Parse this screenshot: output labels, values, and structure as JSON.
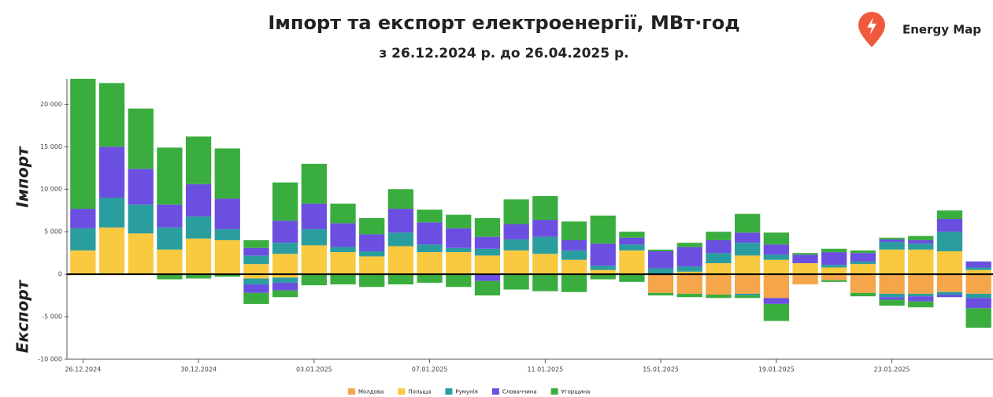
{
  "chart_data": {
    "type": "bar",
    "title": "Імпорт та експорт електроенергії, МВт·год",
    "subtitle": "з 26.12.2024 р. до 26.04.2025 р.",
    "brand": "Energy Map",
    "y_label_positive": "Імпорт",
    "y_label_negative": "Експорт",
    "categories": [
      "26.12.2024",
      null,
      null,
      null,
      "30.12.2024",
      null,
      null,
      null,
      "03.01.2025",
      null,
      null,
      null,
      "07.01.2025",
      null,
      null,
      null,
      "11.01.2025",
      null,
      null,
      null,
      "15.01.2025",
      null,
      null,
      null,
      "19.01.2025",
      null,
      null,
      null,
      "23.01.2025",
      null,
      null,
      null
    ],
    "ylim": [
      -10000,
      23000
    ],
    "yticks": [
      {
        "value": -10000,
        "label": "-10 000"
      },
      {
        "value": -5000,
        "label": "-5 000"
      },
      0,
      {
        "value": 5000,
        "label": "5 000"
      },
      {
        "value": 10000,
        "label": "10 000"
      },
      {
        "value": 15000,
        "label": "15 000"
      },
      {
        "value": 20000,
        "label": "20 000"
      }
    ],
    "series": [
      {
        "name": "Молдова",
        "color": "#f5a54a",
        "values": [
          0,
          0,
          0,
          0,
          0,
          0,
          0,
          0,
          0,
          0,
          0,
          0,
          0,
          0,
          0,
          0,
          0,
          0,
          0,
          0,
          0,
          0,
          0,
          0,
          0,
          0,
          0,
          0,
          0,
          0,
          0,
          0
        ],
        "export": [
          0,
          0,
          0,
          0,
          0,
          0,
          0,
          0,
          0,
          0,
          0,
          0,
          0,
          0,
          0,
          0,
          0,
          0,
          0,
          0,
          -2200,
          -2300,
          -2400,
          -2300,
          -2800,
          -1200,
          -700,
          -2200,
          -2300,
          -2300,
          -2100,
          -2300
        ]
      },
      {
        "name": "Польща",
        "color": "#f9c940",
        "values": [
          2800,
          5500,
          4800,
          2900,
          4200,
          4000,
          1200,
          2400,
          3400,
          2600,
          2100,
          3300,
          2600,
          2600,
          2200,
          2800,
          2400,
          1700,
          500,
          2800,
          0,
          300,
          1300,
          2200,
          1700,
          1300,
          800,
          1200,
          2900,
          2900,
          2700,
          500
        ],
        "export": [
          -100,
          -100,
          0,
          0,
          0,
          0,
          -500,
          -400,
          0,
          0,
          0,
          0,
          0,
          0,
          0,
          0,
          0,
          0,
          0,
          0,
          0,
          0,
          0,
          0,
          0,
          0,
          0,
          0,
          0,
          0,
          0,
          0
        ]
      },
      {
        "name": "Румунія",
        "color": "#2a9d9f",
        "values": [
          2600,
          3500,
          3400,
          2600,
          2600,
          1300,
          1000,
          1300,
          1900,
          600,
          600,
          1600,
          900,
          500,
          800,
          1300,
          2000,
          1100,
          500,
          700,
          700,
          600,
          1200,
          1500,
          600,
          0,
          300,
          300,
          900,
          700,
          2300,
          300
        ],
        "export": [
          0,
          0,
          0,
          0,
          0,
          0,
          -700,
          -600,
          0,
          0,
          0,
          0,
          0,
          0,
          0,
          0,
          0,
          0,
          0,
          0,
          0,
          0,
          0,
          -200,
          0,
          0,
          0,
          0,
          -400,
          -300,
          -300,
          -500
        ]
      },
      {
        "name": "Словаччина",
        "color": "#6b4fe0",
        "values": [
          2300,
          6000,
          4200,
          2700,
          3800,
          3600,
          900,
          2600,
          3000,
          2800,
          2000,
          2800,
          2600,
          2300,
          1400,
          1800,
          2000,
          1200,
          2600,
          800,
          2000,
          2300,
          1500,
          1200,
          1200,
          1000,
          1500,
          1000,
          300,
          400,
          1500,
          700
        ],
        "export": [
          0,
          0,
          0,
          0,
          0,
          0,
          -1000,
          -900,
          0,
          0,
          0,
          0,
          0,
          0,
          -800,
          0,
          0,
          0,
          0,
          0,
          0,
          0,
          0,
          0,
          -700,
          0,
          0,
          0,
          -300,
          -600,
          -300,
          -1200
        ]
      },
      {
        "name": "Угорщина",
        "color": "#3aad3f",
        "values": [
          15300,
          7500,
          7100,
          6700,
          5600,
          5900,
          900,
          4500,
          4700,
          2300,
          1900,
          2300,
          1500,
          1600,
          2200,
          2900,
          2800,
          2200,
          3300,
          700,
          200,
          500,
          1000,
          2200,
          1400,
          200,
          400,
          300,
          200,
          500,
          1000,
          0
        ],
        "export": [
          0,
          0,
          0,
          -600,
          -500,
          -300,
          -1300,
          -800,
          -1300,
          -1200,
          -1500,
          -1200,
          -1000,
          -1500,
          -1700,
          -1800,
          -2000,
          -2100,
          -600,
          -900,
          -300,
          -400,
          -400,
          -300,
          -2000,
          0,
          -200,
          -400,
          -700,
          -700,
          0,
          -2300
        ]
      }
    ]
  }
}
